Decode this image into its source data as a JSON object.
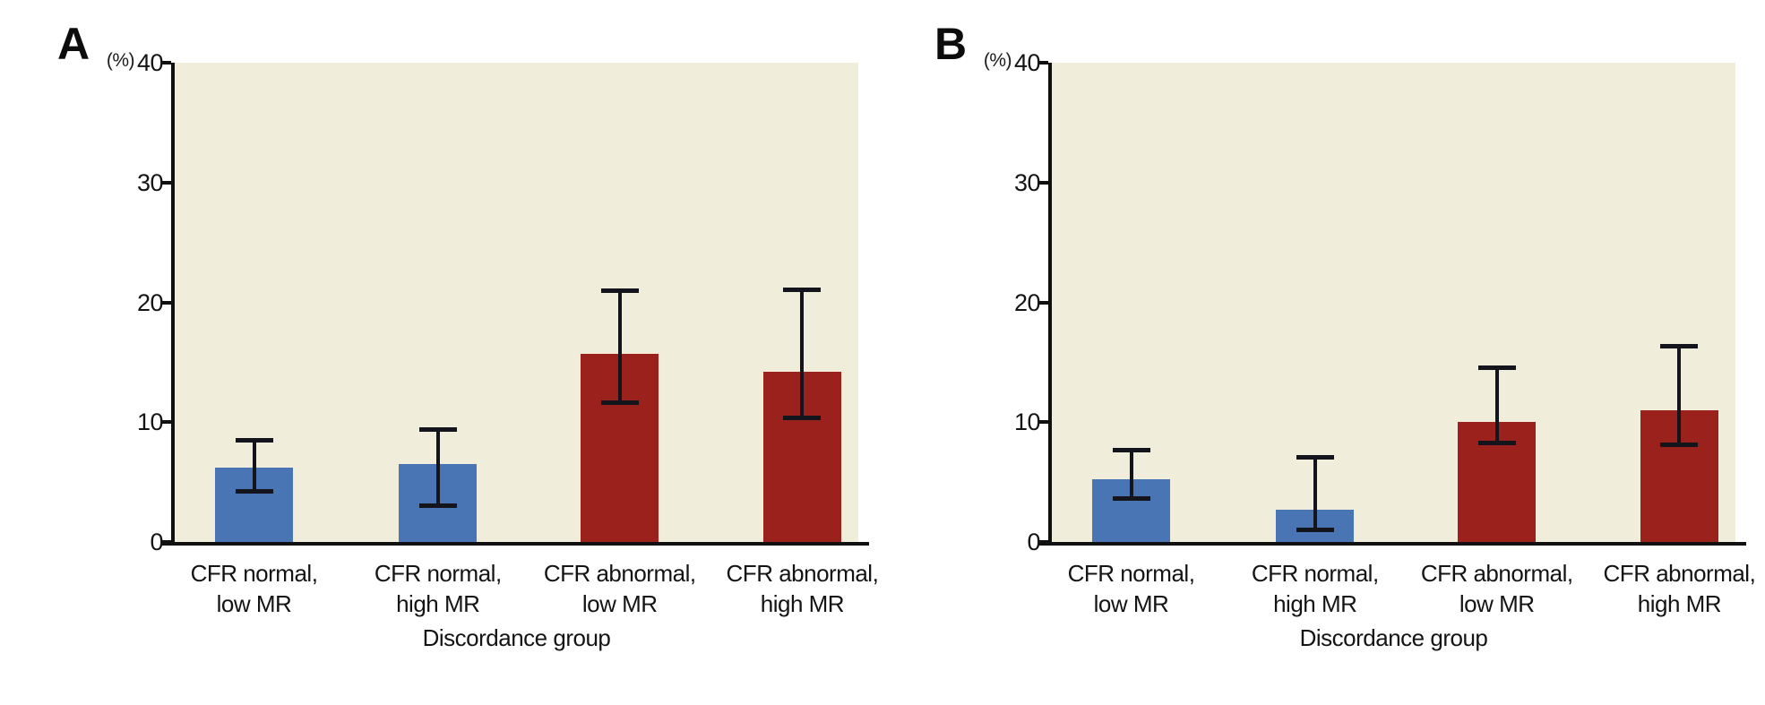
{
  "style": {
    "page_bg": "#ffffff",
    "plot_bg": "#f0eedb",
    "axis_color": "#101010",
    "error_bar_color": "#14141c",
    "blue_bar": "#4a75b4",
    "red_bar": "#9b211d"
  },
  "chart_data": [
    {
      "type": "bar",
      "panel": "A",
      "ylabel": "(%)",
      "xlabel": "Discordance group",
      "ylim": [
        0,
        40
      ],
      "yticks": [
        0,
        10,
        20,
        30,
        40
      ],
      "grid": false,
      "legend_position": "none",
      "categories": [
        "CFR normal, low MR",
        "CFR normal, high MR",
        "CFR abnormal, low MR",
        "CFR abnormal, high MR"
      ],
      "category_lines": [
        [
          "CFR normal,",
          "low MR"
        ],
        [
          "CFR normal,",
          "high MR"
        ],
        [
          "CFR abnormal,",
          "low MR"
        ],
        [
          "CFR abnormal,",
          "high MR"
        ]
      ],
      "values": [
        6.2,
        6.5,
        15.7,
        14.2
      ],
      "error_low": [
        4.2,
        3.0,
        11.6,
        10.3
      ],
      "error_high": [
        8.5,
        9.4,
        21.0,
        21.1
      ],
      "bar_colors": [
        "#4a75b4",
        "#4a75b4",
        "#9b211d",
        "#9b211d"
      ]
    },
    {
      "type": "bar",
      "panel": "B",
      "ylabel": "(%)",
      "xlabel": "Discordance group",
      "ylim": [
        0,
        40
      ],
      "yticks": [
        0,
        10,
        20,
        30,
        40
      ],
      "grid": false,
      "legend_position": "none",
      "categories": [
        "CFR normal, low MR",
        "CFR normal, high MR",
        "CFR abnormal, low MR",
        "CFR abnormal, high MR"
      ],
      "category_lines": [
        [
          "CFR normal,",
          "low MR"
        ],
        [
          "CFR normal,",
          "high MR"
        ],
        [
          "CFR abnormal,",
          "low MR"
        ],
        [
          "CFR abnormal,",
          "high MR"
        ]
      ],
      "values": [
        5.2,
        2.7,
        10.0,
        11.0
      ],
      "error_low": [
        3.6,
        1.0,
        8.2,
        8.1
      ],
      "error_high": [
        7.7,
        7.1,
        14.6,
        16.4
      ],
      "bar_colors": [
        "#4a75b4",
        "#4a75b4",
        "#9b211d",
        "#9b211d"
      ]
    }
  ]
}
